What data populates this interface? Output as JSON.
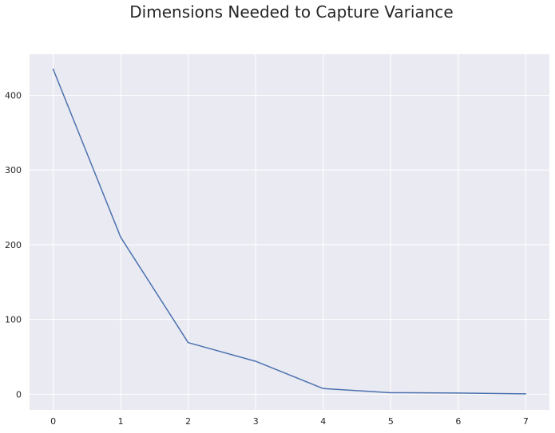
{
  "chart_data": {
    "type": "line",
    "title": "Dimensions Needed to Capture Variance",
    "xlabel": "",
    "ylabel": "",
    "x": [
      0,
      1,
      2,
      3,
      4,
      5,
      6,
      7
    ],
    "series": [
      {
        "values": [
          435,
          210,
          69,
          44,
          7.5,
          2,
          1.5,
          0.5
        ]
      }
    ],
    "xticks": [
      0,
      1,
      2,
      3,
      4,
      5,
      6,
      7
    ],
    "yticks": [
      0,
      100,
      200,
      300,
      400
    ],
    "xlim": [
      -0.35,
      7.35
    ],
    "ylim": [
      -21,
      455
    ],
    "grid": true,
    "legend": "none",
    "colors": {
      "background": "#eaeaf2",
      "grid": "#ffffff",
      "line": "#4c72b0",
      "text": "#262626"
    }
  }
}
